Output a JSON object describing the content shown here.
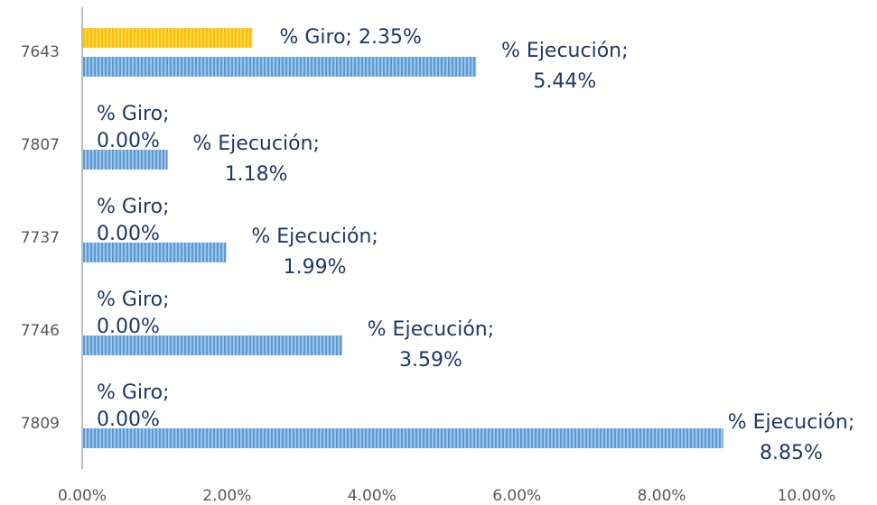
{
  "chart_data": {
    "type": "hbar",
    "categories": [
      "7643",
      "7807",
      "7737",
      "7746",
      "7809"
    ],
    "series": [
      {
        "name": "% Giro",
        "color": "#ffc000",
        "values": [
          2.35,
          0,
          0,
          0,
          0
        ],
        "value_labels": [
          "% Giro; 2.35%",
          "% Giro; 0.00%",
          "% Giro; 0.00%",
          "% Giro; 0.00%",
          "% Giro; 0.00%"
        ]
      },
      {
        "name": "% Ejecución",
        "color": "#5b9bd5",
        "values": [
          5.44,
          1.18,
          1.99,
          3.59,
          8.85
        ],
        "value_labels": [
          "% Ejecución; 5.44%",
          "% Ejecución; 1.18%",
          "% Ejecución; 1.99%",
          "% Ejecución; 3.59%",
          "% Ejecución; 8.85%"
        ]
      }
    ],
    "xlim": [
      0,
      10
    ],
    "xticks": [
      {
        "value": 0,
        "label": "0.00%"
      },
      {
        "value": 2,
        "label": "2.00%"
      },
      {
        "value": 4,
        "label": "4.00%"
      },
      {
        "value": 6,
        "label": "6.00%"
      },
      {
        "value": 8,
        "label": "8.00%"
      },
      {
        "value": 10,
        "label": "10.00%"
      }
    ]
  }
}
